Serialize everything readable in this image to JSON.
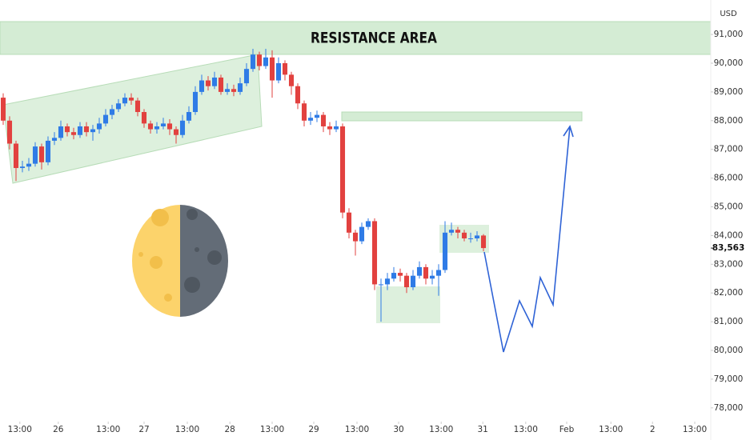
{
  "chart_data": {
    "type": "candlestick",
    "title": "RESISTANCE AREA",
    "currency": "USD",
    "up_color": "#2f7be6",
    "down_color": "#e2413f",
    "open": [
      88800,
      88000,
      87200,
      86350,
      86400,
      86500,
      87100,
      86550,
      87300,
      87400,
      87800,
      87600,
      87500,
      87800,
      87600,
      87700,
      87900,
      88200,
      88400,
      88600,
      88800,
      88700,
      88300,
      87900,
      87700,
      87800,
      87900,
      87700,
      87500,
      88000,
      88300,
      89000,
      89400,
      89200,
      89500,
      89000,
      89100,
      89000,
      89300,
      89800,
      90300,
      89900,
      90200,
      89400,
      90000,
      89600,
      89200,
      88600,
      88000,
      88100,
      88200,
      87800,
      87700,
      87800,
      84800,
      84100,
      83800,
      84300,
      84500,
      82300,
      82300,
      82500,
      82700,
      82600,
      82200,
      82600,
      82900,
      82500,
      82600,
      82800,
      84100,
      84200,
      84100,
      83900,
      83900,
      84000
    ],
    "high": [
      88950,
      88150,
      87300,
      86600,
      86700,
      87250,
      87200,
      87450,
      87600,
      88000,
      87900,
      87750,
      87950,
      87950,
      87850,
      88100,
      88400,
      88550,
      88750,
      88950,
      88950,
      88800,
      88400,
      88000,
      87950,
      88100,
      88050,
      87800,
      88200,
      88500,
      89200,
      89600,
      89550,
      89700,
      89600,
      89300,
      89250,
      89500,
      90000,
      90500,
      90400,
      90500,
      90450,
      90200,
      90100,
      89700,
      89300,
      88700,
      88300,
      88350,
      88300,
      87950,
      88000,
      87900,
      84950,
      84200,
      84450,
      84600,
      84600,
      82500,
      82700,
      82900,
      82850,
      82700,
      82800,
      83100,
      83000,
      82800,
      83000,
      84500,
      84450,
      84300,
      84200,
      84100,
      84150,
      84050
    ],
    "low": [
      87850,
      87000,
      85900,
      86200,
      86250,
      86400,
      86300,
      86450,
      87150,
      87300,
      87450,
      87350,
      87400,
      87450,
      87300,
      87550,
      87800,
      88050,
      88300,
      88500,
      88550,
      88150,
      87750,
      87550,
      87550,
      87700,
      87500,
      87200,
      87400,
      87900,
      88200,
      88900,
      89050,
      89100,
      88900,
      88900,
      88850,
      88900,
      89200,
      89700,
      89750,
      89800,
      88800,
      89300,
      89400,
      88900,
      88400,
      87800,
      87850,
      87950,
      87600,
      87500,
      87600,
      84600,
      83900,
      83300,
      83700,
      84200,
      82100,
      81000,
      82100,
      82400,
      82400,
      82000,
      82100,
      82500,
      82300,
      82300,
      81900,
      82700,
      84000,
      83900,
      83800,
      83750,
      83800,
      83450
    ],
    "close": [
      88000,
      87200,
      86350,
      86400,
      86500,
      87100,
      86550,
      87300,
      87400,
      87800,
      87600,
      87500,
      87800,
      87600,
      87700,
      87900,
      88200,
      88400,
      88600,
      88800,
      88700,
      88300,
      87900,
      87700,
      87800,
      87900,
      87700,
      87500,
      88000,
      88300,
      89000,
      89400,
      89200,
      89500,
      89000,
      89100,
      89000,
      89300,
      89800,
      90300,
      89900,
      90200,
      89400,
      90000,
      89600,
      89200,
      88600,
      88000,
      88100,
      88200,
      87800,
      87700,
      87800,
      84800,
      84100,
      83800,
      84300,
      84500,
      82300,
      82300,
      82500,
      82700,
      82600,
      82200,
      82600,
      82900,
      82500,
      82600,
      82800,
      84100,
      84200,
      84100,
      83900,
      83900,
      84000,
      83563
    ],
    "last_price": {
      "value": 83563,
      "label": "83,563"
    },
    "xlim": [
      -0.5,
      110.5
    ],
    "xticks": [
      {
        "value": 2.6,
        "label": "13:00"
      },
      {
        "value": 8.6,
        "label": "26"
      },
      {
        "value": 16.4,
        "label": "13:00"
      },
      {
        "value": 22,
        "label": "27"
      },
      {
        "value": 28.75,
        "label": "13:00"
      },
      {
        "value": 35.4,
        "label": "28"
      },
      {
        "value": 42,
        "label": "13:00"
      },
      {
        "value": 48.5,
        "label": "29"
      },
      {
        "value": 55.25,
        "label": "13:00"
      },
      {
        "value": 61.75,
        "label": "30"
      },
      {
        "value": 68.4,
        "label": "13:00"
      },
      {
        "value": 74.9,
        "label": "31"
      },
      {
        "value": 81.6,
        "label": "13:00"
      },
      {
        "value": 88,
        "label": "Feb"
      },
      {
        "value": 94.9,
        "label": "13:00"
      },
      {
        "value": 101.4,
        "label": "2"
      },
      {
        "value": 108,
        "label": "13:00"
      }
    ],
    "ylim": [
      77800,
      92200
    ],
    "yticks": [
      {
        "value": 78000,
        "label": "78,000"
      },
      {
        "value": 79000,
        "label": "79,000"
      },
      {
        "value": 80000,
        "label": "80,000"
      },
      {
        "value": 81000,
        "label": "81,000"
      },
      {
        "value": 82000,
        "label": "82,000"
      },
      {
        "value": 83000,
        "label": "83,000"
      },
      {
        "value": 84000,
        "label": "84,000"
      },
      {
        "value": 85000,
        "label": "85,000"
      },
      {
        "value": 86000,
        "label": "86,000"
      },
      {
        "value": 87000,
        "label": "87,000"
      },
      {
        "value": 88000,
        "label": "88,000"
      },
      {
        "value": 89000,
        "label": "89,000"
      },
      {
        "value": 90000,
        "label": "90,000"
      },
      {
        "value": 91000,
        "label": "91,000"
      }
    ]
  }
}
